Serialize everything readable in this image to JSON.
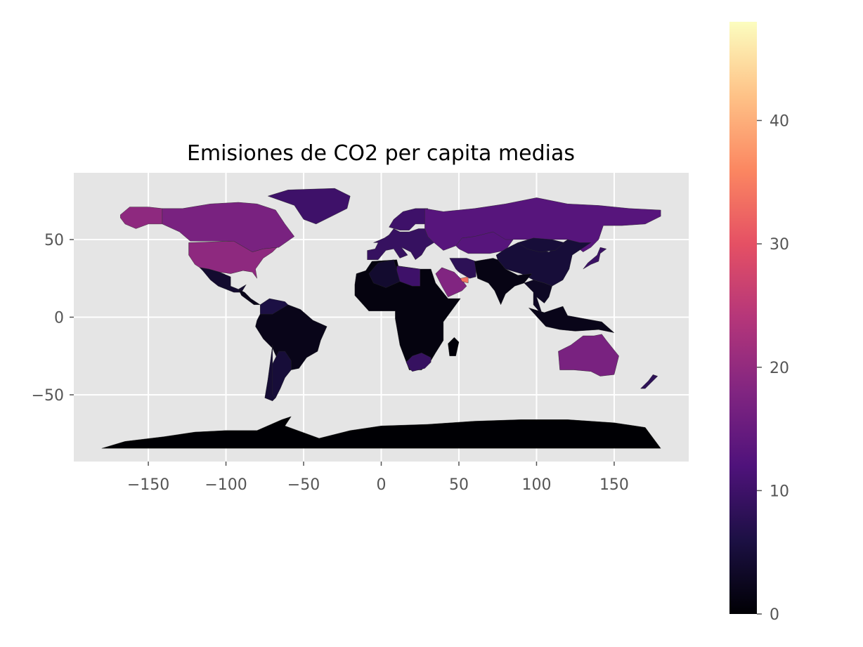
{
  "chart_data": {
    "type": "choropleth",
    "title": "Emisiones de CO2 per capita medias",
    "xlabel": "",
    "ylabel": "",
    "xlim": [
      -198,
      198
    ],
    "ylim": [
      -93,
      93
    ],
    "x_ticks": [
      -150,
      -100,
      -50,
      0,
      50,
      100,
      150
    ],
    "x_tick_labels": [
      "−150",
      "−100",
      "−50",
      "0",
      "50",
      "100",
      "150"
    ],
    "y_ticks": [
      -50,
      0,
      50
    ],
    "y_tick_labels": [
      "−50",
      "0",
      "50"
    ],
    "grid": true,
    "background": "#e5e5e5",
    "colorbar": {
      "cmap": "magma",
      "range": [
        0,
        48
      ],
      "ticks": [
        0,
        10,
        20,
        30,
        40
      ],
      "tick_labels": [
        "0",
        "10",
        "20",
        "30",
        "40"
      ]
    },
    "regions": [
      {
        "name": "Alaska",
        "value": 19.5
      },
      {
        "name": "Canada",
        "value": 17
      },
      {
        "name": "Greenland",
        "value": 10
      },
      {
        "name": "United States",
        "value": 19.5
      },
      {
        "name": "Mexico",
        "value": 4
      },
      {
        "name": "Central America",
        "value": 2
      },
      {
        "name": "Venezuela / Colombia",
        "value": 6
      },
      {
        "name": "South America",
        "value": 2
      },
      {
        "name": "Chile",
        "value": 4.5
      },
      {
        "name": "Argentina",
        "value": 5
      },
      {
        "name": "Africa",
        "value": 1
      },
      {
        "name": "Libya",
        "value": 10
      },
      {
        "name": "Algeria",
        "value": 4
      },
      {
        "name": "South Africa",
        "value": 9
      },
      {
        "name": "Madagascar",
        "value": 0.5
      },
      {
        "name": "Europe",
        "value": 9
      },
      {
        "name": "Scandinavia",
        "value": 10
      },
      {
        "name": "Saudi Arabia",
        "value": 18
      },
      {
        "name": "UAE / Qatar",
        "value": 34
      },
      {
        "name": "Iran",
        "value": 8
      },
      {
        "name": "Kazakhstan",
        "value": 13
      },
      {
        "name": "Russia",
        "value": 13
      },
      {
        "name": "China",
        "value": 5
      },
      {
        "name": "Mongolia",
        "value": 5
      },
      {
        "name": "India region",
        "value": 1.5
      },
      {
        "name": "Southeast Asia",
        "value": 3
      },
      {
        "name": "Indonesia",
        "value": 2
      },
      {
        "name": "Japan",
        "value": 9.5
      },
      {
        "name": "Australia",
        "value": 17
      },
      {
        "name": "New Zealand",
        "value": 8
      },
      {
        "name": "Antarctica",
        "value": 0
      }
    ]
  }
}
